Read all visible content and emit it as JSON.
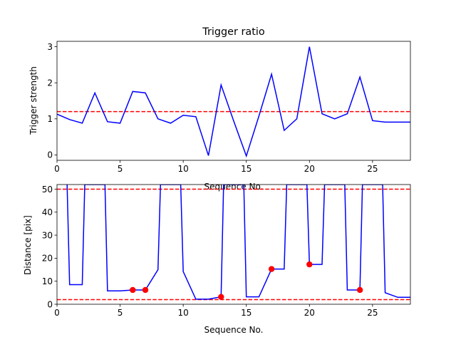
{
  "chart_data": [
    {
      "type": "line",
      "title": "Trigger ratio",
      "xlabel": "Sequence No.",
      "ylabel": "Trigger strength",
      "xlim": [
        0,
        28
      ],
      "ylim": [
        -0.15,
        3.15
      ],
      "xticks": [
        0,
        5,
        10,
        15,
        20,
        25
      ],
      "yticks": [
        0,
        1,
        2,
        3
      ],
      "grid": false,
      "line_color": "#0000ff",
      "threshold_color": "#ff0000",
      "threshold": 1.2,
      "x": [
        0,
        1,
        2,
        3,
        4,
        5,
        6,
        7,
        8,
        9,
        10,
        11,
        12,
        13,
        14,
        15,
        16,
        17,
        18,
        19,
        20,
        21,
        22,
        23,
        24,
        25,
        26,
        27,
        28
      ],
      "values": [
        1.13,
        0.98,
        0.88,
        1.72,
        0.92,
        0.88,
        1.76,
        1.72,
        1.0,
        0.88,
        1.1,
        1.06,
        -0.02,
        1.94,
        0.94,
        -0.03,
        1.08,
        2.24,
        0.68,
        1.0,
        3.0,
        1.14,
        1.0,
        1.14,
        2.16,
        0.95,
        0.91,
        0.91,
        0.91
      ]
    },
    {
      "type": "line",
      "title": "",
      "xlabel": "Sequence No.",
      "ylabel": "Distance [pix]",
      "xlim": [
        0,
        28
      ],
      "ylim": [
        0,
        52
      ],
      "xticks": [
        0,
        5,
        10,
        15,
        20,
        25
      ],
      "yticks": [
        0,
        10,
        20,
        30,
        40,
        50
      ],
      "grid": false,
      "line_color": "#0000ff",
      "threshold_color": "#ff0000",
      "thresholds": [
        50,
        2
      ],
      "marker_color": "#ff0000",
      "x": [
        0.8,
        1,
        2,
        2.2,
        3.8,
        4,
        5,
        6,
        7,
        8,
        8.2,
        9.8,
        10,
        11,
        12,
        13,
        13.2,
        14.8,
        15,
        16,
        17,
        18,
        18.2,
        19.8,
        20,
        21,
        21.2,
        22.8,
        23,
        24,
        24.2,
        25.8,
        26,
        27,
        28
      ],
      "values": [
        52,
        8.5,
        8.5,
        52,
        52,
        5.8,
        5.8,
        6.2,
        6.2,
        15,
        52,
        52,
        14.2,
        2.2,
        2.2,
        3.2,
        52,
        52,
        3.2,
        3.2,
        15.3,
        15.3,
        52,
        52,
        17.3,
        17.3,
        52,
        52,
        6.2,
        6.2,
        52,
        52,
        5,
        3,
        3
      ],
      "markers": [
        {
          "x": 6,
          "y": 6.2
        },
        {
          "x": 7,
          "y": 6.2
        },
        {
          "x": 13,
          "y": 3.2
        },
        {
          "x": 17,
          "y": 15.3
        },
        {
          "x": 20,
          "y": 17.3
        },
        {
          "x": 24,
          "y": 6.2
        }
      ]
    }
  ]
}
